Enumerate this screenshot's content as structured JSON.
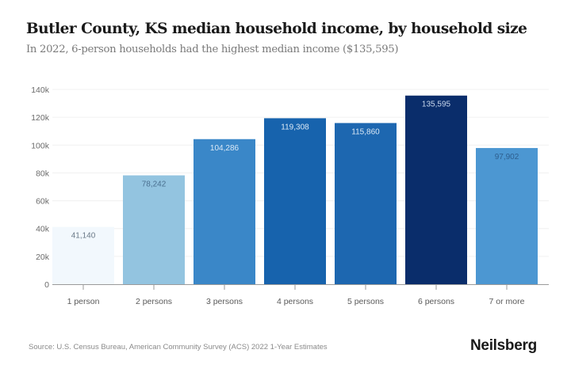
{
  "header": {
    "title": "Butler County, KS median household income, by household size",
    "subtitle": "In 2022, 6-person households had the highest median income ($135,595)"
  },
  "footer": {
    "source": "Source: U.S. Census Bureau, American Community Survey (ACS) 2022 1-Year Estimates",
    "brand": "Neilsberg"
  },
  "chart_data": {
    "type": "bar",
    "title": "Butler County, KS median household income, by household size",
    "subtitle": "In 2022, 6-person households had the highest median income ($135,595)",
    "xlabel": "",
    "ylabel": "",
    "categories": [
      "1 person",
      "2 persons",
      "3 persons",
      "4 persons",
      "5 persons",
      "6 persons",
      "7 or more"
    ],
    "values": [
      41140,
      78242,
      104286,
      119308,
      115860,
      135595,
      97902
    ],
    "value_labels": [
      "41,140",
      "78,242",
      "104,286",
      "119,308",
      "115,860",
      "135,595",
      "97,902"
    ],
    "bar_colors": [
      "#f2f8fd",
      "#93c4e0",
      "#3a87c8",
      "#1763ad",
      "#1d67b0",
      "#0a2d6b",
      "#4c97d2"
    ],
    "label_colors": [
      "#6b7a88",
      "#4a6f8f",
      "#dbe9f6",
      "#dbe9f6",
      "#dbe9f6",
      "#c9d8ec",
      "#2e5f8f"
    ],
    "ylim": [
      0,
      140000
    ],
    "yticks": [
      0,
      20000,
      40000,
      60000,
      80000,
      100000,
      120000,
      140000
    ],
    "ytick_labels": [
      "0",
      "20k",
      "40k",
      "60k",
      "80k",
      "100k",
      "120k",
      "140k"
    ],
    "grid": true,
    "legend": "none"
  }
}
